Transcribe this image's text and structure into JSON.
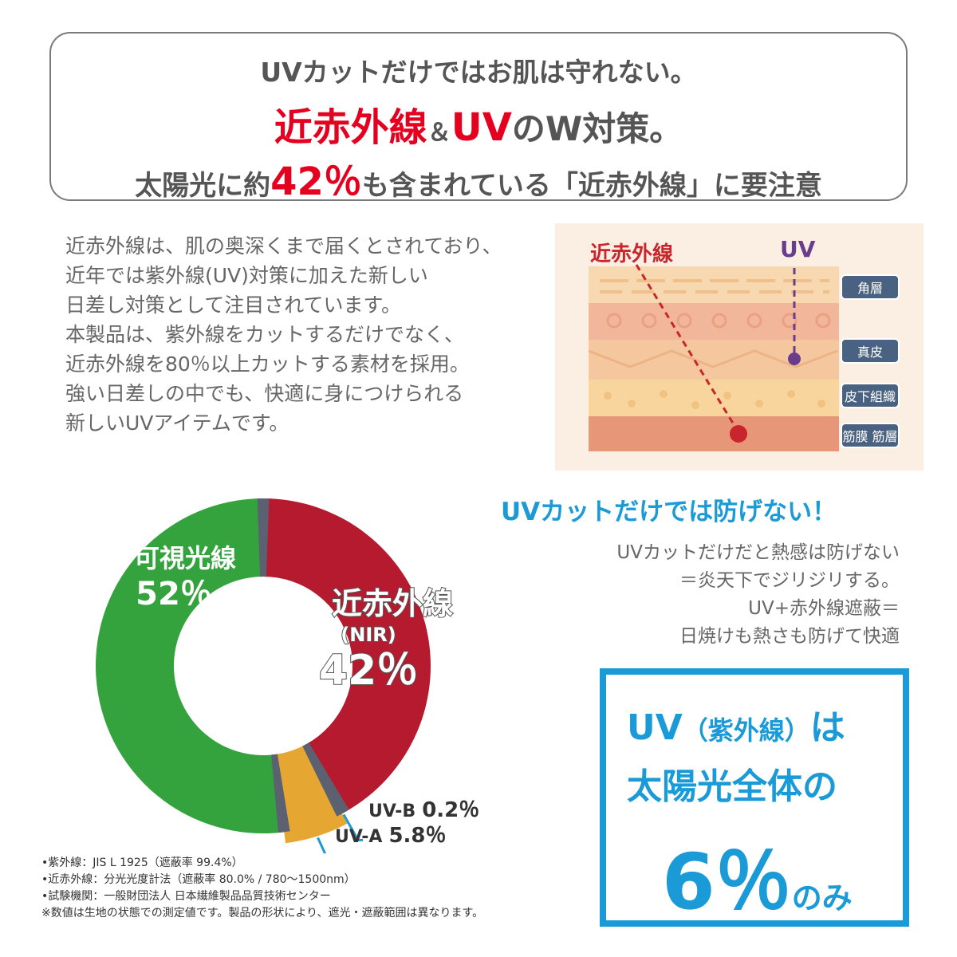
{
  "headline": {
    "line1": "UVカットだけではお肌は守れない。",
    "line2_nir": "近赤外線",
    "line2_amp": "＆",
    "line2_uv": "UV",
    "line2_rest": "のW対策。",
    "line3_pre": "太陽光に約",
    "line3_pct": "42％",
    "line3_post": "も含まれている「近赤外線」に要注意"
  },
  "intro_lines": [
    "近赤外線は、肌の奥深くまで届くとされており、",
    "近年では紫外線(UV)対策に加えた新しい",
    "日差し対策として注目されています。",
    "本製品は、紫外線をカットするだけでなく、",
    "近赤外線を80％以上カットする素材を採用。",
    "強い日差しの中でも、快適に身につけられる",
    "新しいUVアイテムです。"
  ],
  "skin": {
    "nir_label": "近赤外線",
    "uv_label": "UV",
    "layers": [
      "角層",
      "真皮",
      "皮下組織",
      "筋膜 筋層"
    ]
  },
  "slogan": "UVカットだけでは防げない！",
  "desc_lines": [
    "UVカットだけだと熱感は防げない",
    "＝炎天下でジリジリする。",
    "UV+赤外線遮蔽＝",
    "日焼けも熱さも防げて快適"
  ],
  "uv_box": {
    "line1_a": "UV",
    "line1_b": "（紫外線）",
    "line1_c": "は",
    "line2": "太陽光全体の",
    "pct": "6％",
    "suffix": "のみ"
  },
  "chart_data": {
    "type": "pie",
    "categories": [
      "近赤外線 (NIR)",
      "UV-B",
      "UV-A",
      "可視光線"
    ],
    "values": [
      42,
      0.2,
      5.8,
      52
    ],
    "labels": {
      "nir_name": "近赤外線",
      "nir_sub": "(NIR)",
      "nir_pct": "42％",
      "vis_name": "可視光線",
      "vis_pct": "52％",
      "uvb_name": "UV-B",
      "uvb_pct": "0.2％",
      "uva_name": "UV-A",
      "uva_pct": "5.8％"
    },
    "colors": {
      "nir": "#b51a2e",
      "visible": "#34a33e",
      "uva": "#e6a632",
      "separator": "#5b6170",
      "leader": "#1a9ad7"
    }
  },
  "footnotes": [
    "•紫外線：JIS L 1925（遮蔽率 99.4%）",
    "•近赤外線：分光光度計法（遮蔽率 80.0% / 780〜1500nm）",
    "•試験機関：一般財団法人 日本繊維製品品質技術センター",
    "※数値は生地の状態での測定値です。製品の形状により、遮光・遮蔽範囲は異なります。"
  ],
  "colors": {
    "accent_red": "#e6001f",
    "accent_blue": "#1a9ad7",
    "text_gray": "#666666"
  }
}
